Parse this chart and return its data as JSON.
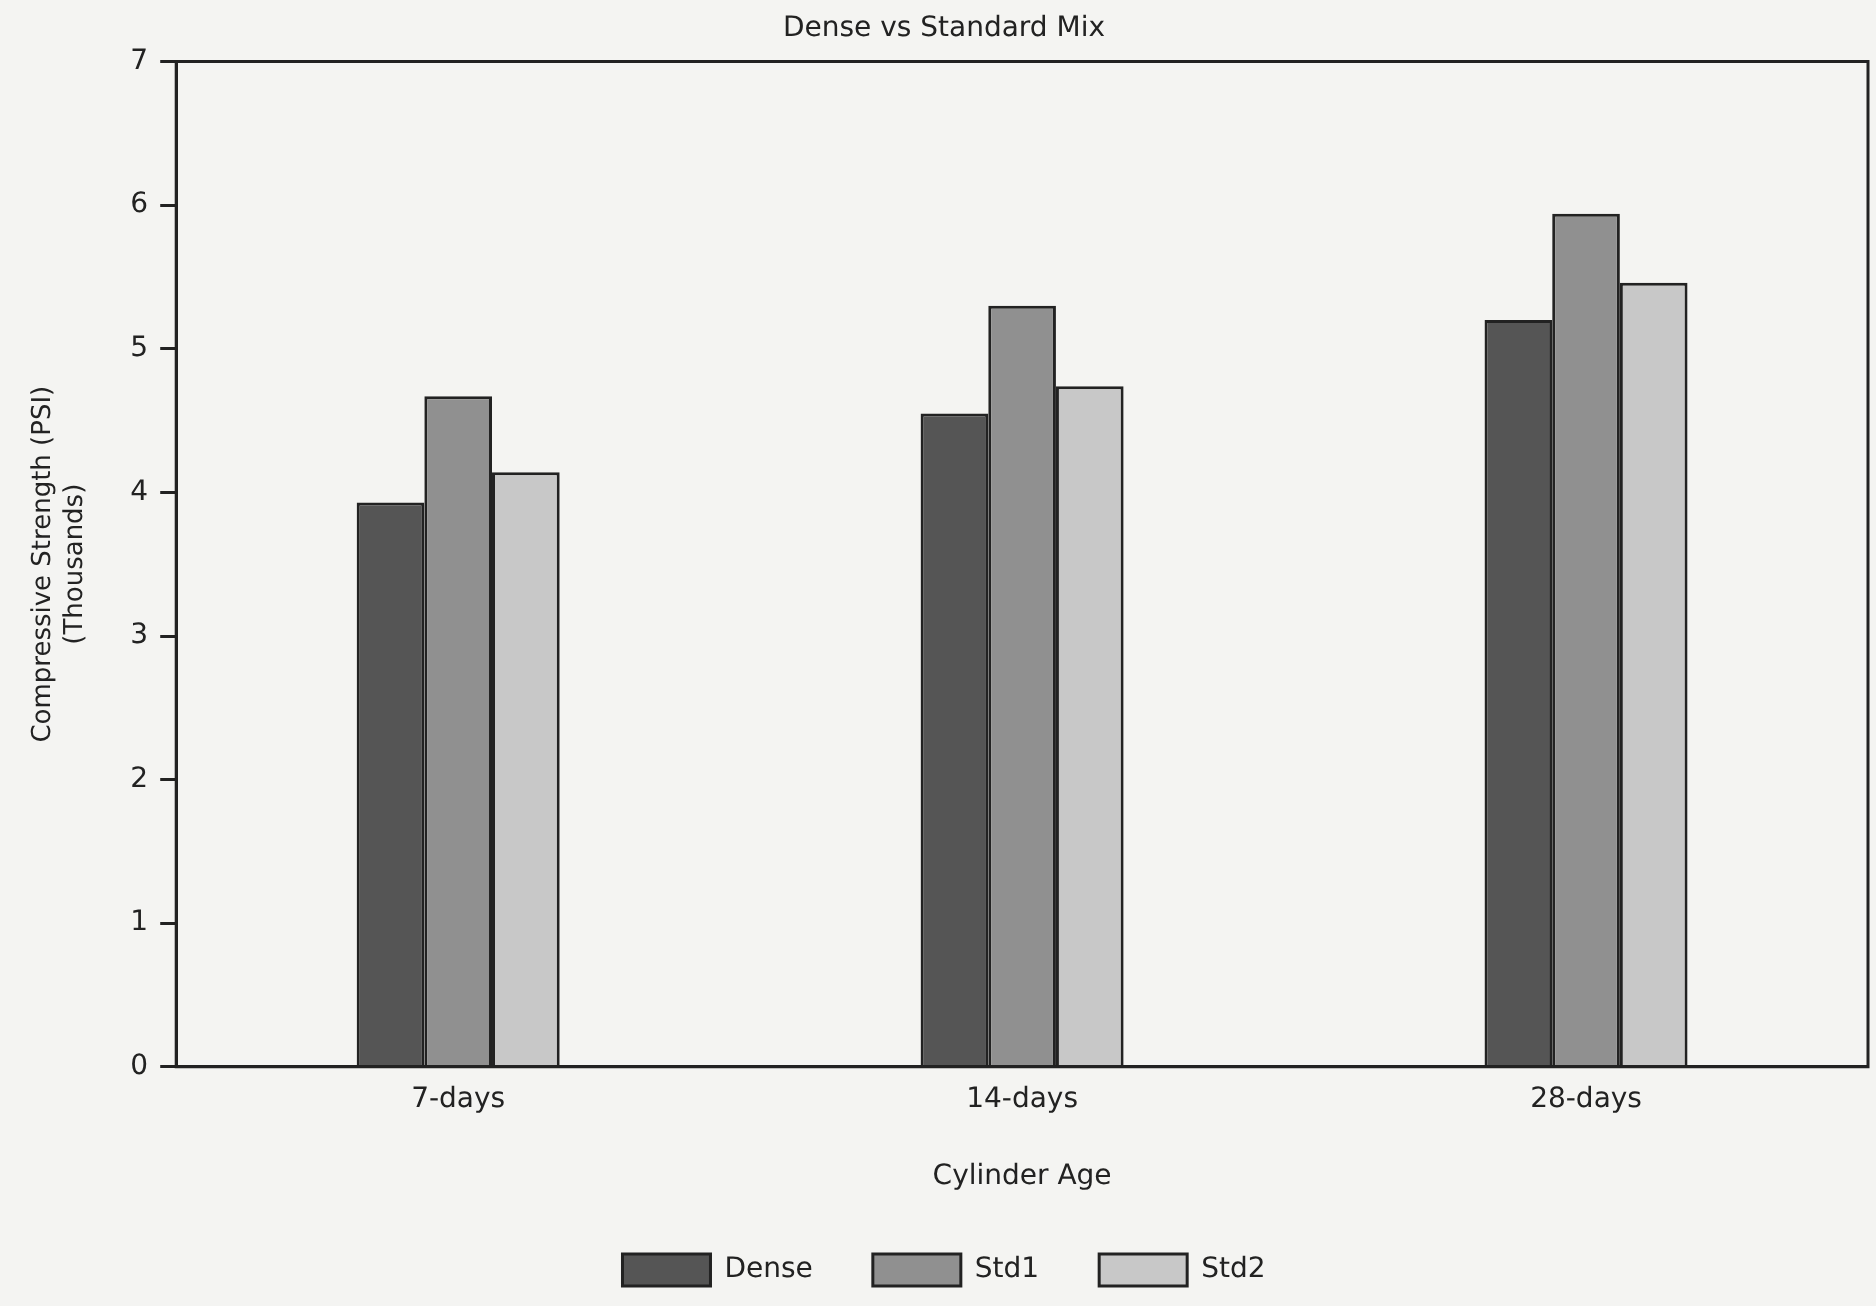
{
  "chart_data": {
    "type": "bar",
    "title": "Dense vs Standard Mix",
    "xlabel": "Cylinder Age",
    "ylabel": "Compressive Strength (PSI)\n(Thousands)",
    "categories": [
      "7-days",
      "14-days",
      "28-days"
    ],
    "series": [
      {
        "name": "Dense",
        "color": "#555555",
        "values": [
          3.93,
          4.55,
          5.2
        ]
      },
      {
        "name": "Std1",
        "color": "#909090",
        "values": [
          4.67,
          5.3,
          5.94
        ]
      },
      {
        "name": "Std2",
        "color": "#c8c8c8",
        "values": [
          4.14,
          4.74,
          5.46
        ]
      }
    ],
    "ylim": [
      0,
      7
    ],
    "yticks": [
      0,
      1,
      2,
      3,
      4,
      5,
      6,
      7
    ],
    "grid": false,
    "legend": "bottom"
  }
}
